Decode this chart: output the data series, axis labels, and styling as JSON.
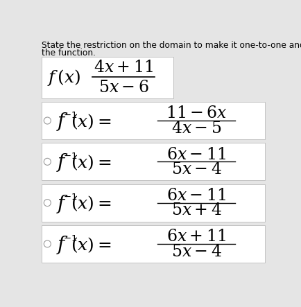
{
  "title_line1": "State the restriction on the domain to make it one-to-one and the find the inverse of",
  "title_line2": "the function.",
  "bg_color": "#e5e5e5",
  "box_color": "#ffffff",
  "text_color": "#000000",
  "title_fontsize": 8.8,
  "options": [
    {
      "num": "$11 - 6x$",
      "den": "$4x - 5$"
    },
    {
      "num": "$6x - 11$",
      "den": "$5x - 4$"
    },
    {
      "num": "$6x - 11$",
      "den": "$5x + 4$"
    },
    {
      "num": "$6x + 11$",
      "den": "$5x - 4$"
    }
  ],
  "q_num": "$4x + 11$",
  "q_den": "$5x - 6$",
  "q_fx": "$f(x)$"
}
